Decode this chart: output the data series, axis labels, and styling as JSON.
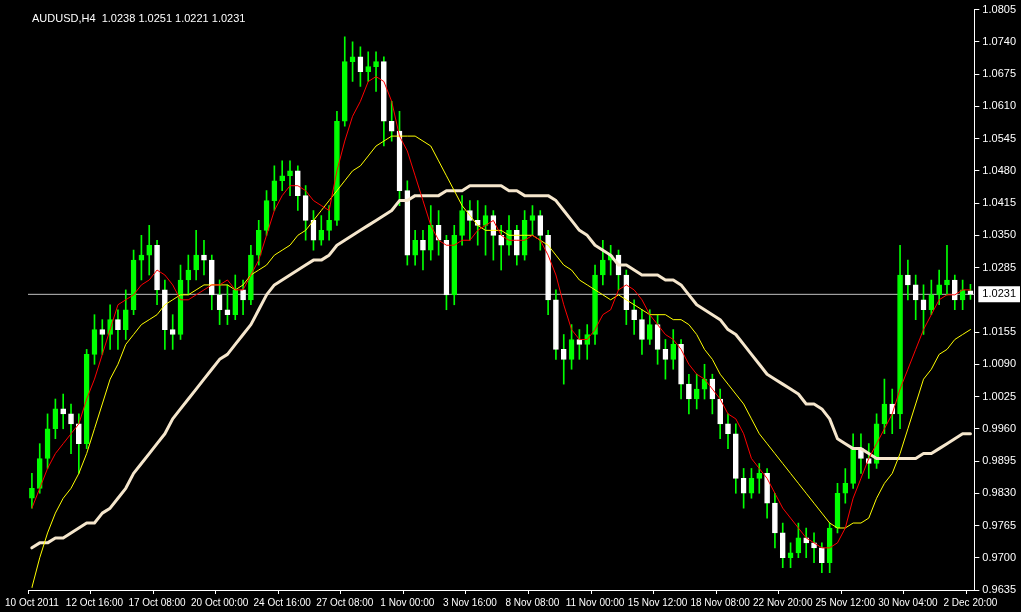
{
  "chart_data": {
    "type": "candlestick",
    "title": "AUDUSD,H4  1.0238 1.0251 1.0221 1.0231",
    "categories": [
      "10 Oct 2011",
      null,
      null,
      null,
      null,
      null,
      null,
      null,
      "12 Oct 16:00",
      null,
      null,
      null,
      null,
      null,
      null,
      null,
      "17 Oct 08:00",
      null,
      null,
      null,
      null,
      null,
      null,
      null,
      "20 Oct 00:00",
      null,
      null,
      null,
      null,
      null,
      null,
      null,
      "24 Oct 16:00",
      null,
      null,
      null,
      null,
      null,
      null,
      null,
      "27 Oct 08:00",
      null,
      null,
      null,
      null,
      null,
      null,
      null,
      "1 Nov 00:00",
      null,
      null,
      null,
      null,
      null,
      null,
      null,
      "3 Nov 16:00",
      null,
      null,
      null,
      null,
      null,
      null,
      null,
      "8 Nov 08:00",
      null,
      null,
      null,
      null,
      null,
      null,
      null,
      "11 Nov 00:00",
      null,
      null,
      null,
      null,
      null,
      null,
      null,
      "15 Nov 12:00",
      null,
      null,
      null,
      null,
      null,
      null,
      null,
      "18 Nov 08:00",
      null,
      null,
      null,
      null,
      null,
      null,
      null,
      "22 Nov 20:00",
      null,
      null,
      null,
      null,
      null,
      null,
      null,
      "25 Nov 12:00",
      null,
      null,
      null,
      null,
      null,
      null,
      null,
      "30 Nov 04:00",
      null,
      null,
      null,
      null,
      null,
      null,
      null,
      "2 Dec 20:00"
    ],
    "ohlc": [
      [
        0.982,
        0.987,
        0.98,
        0.984
      ],
      [
        0.984,
        0.993,
        0.983,
        0.99
      ],
      [
        0.99,
        0.999,
        0.988,
        0.996
      ],
      [
        0.996,
        1.002,
        0.994,
        1.0
      ],
      [
        1.0,
        1.003,
        0.996,
        0.999
      ],
      [
        0.999,
        1.001,
        0.991,
        0.997
      ],
      [
        0.997,
        0.999,
        0.987,
        0.993
      ],
      [
        0.993,
        1.012,
        0.992,
        1.011
      ],
      [
        1.011,
        1.019,
        1.009,
        1.016
      ],
      [
        1.016,
        1.018,
        1.011,
        1.015
      ],
      [
        1.015,
        1.021,
        1.012,
        1.018
      ],
      [
        1.018,
        1.02,
        1.012,
        1.016
      ],
      [
        1.016,
        1.024,
        1.014,
        1.02
      ],
      [
        1.02,
        1.032,
        1.019,
        1.03
      ],
      [
        1.03,
        1.035,
        1.026,
        1.031
      ],
      [
        1.031,
        1.037,
        1.027,
        1.033
      ],
      [
        1.033,
        1.034,
        1.021,
        1.024
      ],
      [
        1.024,
        1.026,
        1.012,
        1.016
      ],
      [
        1.016,
        1.019,
        1.012,
        1.015
      ],
      [
        1.015,
        1.029,
        1.014,
        1.026
      ],
      [
        1.026,
        1.031,
        1.023,
        1.028
      ],
      [
        1.028,
        1.036,
        1.026,
        1.031
      ],
      [
        1.031,
        1.034,
        1.027,
        1.03
      ],
      [
        1.03,
        1.031,
        1.02,
        1.023
      ],
      [
        1.023,
        1.026,
        1.017,
        1.02
      ],
      [
        1.02,
        1.025,
        1.017,
        1.019
      ],
      [
        1.019,
        1.027,
        1.018,
        1.024
      ],
      [
        1.024,
        1.026,
        1.019,
        1.022
      ],
      [
        1.022,
        1.033,
        1.021,
        1.031
      ],
      [
        1.031,
        1.038,
        1.029,
        1.036
      ],
      [
        1.036,
        1.044,
        1.035,
        1.042
      ],
      [
        1.042,
        1.049,
        1.04,
        1.046
      ],
      [
        1.046,
        1.05,
        1.044,
        1.047
      ],
      [
        1.047,
        1.05,
        1.043,
        1.048
      ],
      [
        1.048,
        1.049,
        1.04,
        1.043
      ],
      [
        1.043,
        1.045,
        1.034,
        1.038
      ],
      [
        1.038,
        1.04,
        1.032,
        1.034
      ],
      [
        1.034,
        1.039,
        1.033,
        1.036
      ],
      [
        1.036,
        1.041,
        1.034,
        1.038
      ],
      [
        1.038,
        1.06,
        1.037,
        1.058
      ],
      [
        1.058,
        1.075,
        1.057,
        1.07
      ],
      [
        1.07,
        1.074,
        1.066,
        1.071
      ],
      [
        1.071,
        1.073,
        1.065,
        1.068
      ],
      [
        1.068,
        1.072,
        1.066,
        1.069
      ],
      [
        1.069,
        1.072,
        1.064,
        1.07
      ],
      [
        1.07,
        1.071,
        1.053,
        1.058
      ],
      [
        1.058,
        1.062,
        1.054,
        1.056
      ],
      [
        1.056,
        1.06,
        1.041,
        1.044
      ],
      [
        1.044,
        1.046,
        1.029,
        1.031
      ],
      [
        1.031,
        1.036,
        1.029,
        1.034
      ],
      [
        1.034,
        1.036,
        1.028,
        1.032
      ],
      [
        1.032,
        1.041,
        1.03,
        1.037
      ],
      [
        1.037,
        1.04,
        1.031,
        1.034
      ],
      [
        1.034,
        1.035,
        1.02,
        1.023
      ],
      [
        1.023,
        1.037,
        1.021,
        1.035
      ],
      [
        1.035,
        1.043,
        1.033,
        1.04
      ],
      [
        1.04,
        1.042,
        1.034,
        1.038
      ],
      [
        1.038,
        1.042,
        1.033,
        1.037
      ],
      [
        1.037,
        1.041,
        1.031,
        1.039
      ],
      [
        1.039,
        1.04,
        1.03,
        1.035
      ],
      [
        1.035,
        1.037,
        1.028,
        1.033
      ],
      [
        1.033,
        1.039,
        1.031,
        1.036
      ],
      [
        1.036,
        1.037,
        1.029,
        1.031
      ],
      [
        1.031,
        1.04,
        1.03,
        1.038
      ],
      [
        1.038,
        1.041,
        1.035,
        1.039
      ],
      [
        1.039,
        1.04,
        1.032,
        1.035
      ],
      [
        1.035,
        1.036,
        1.019,
        1.022
      ],
      [
        1.022,
        1.024,
        1.01,
        1.012
      ],
      [
        1.012,
        1.015,
        1.005,
        1.01
      ],
      [
        1.01,
        1.017,
        1.008,
        1.014
      ],
      [
        1.014,
        1.016,
        1.01,
        1.013
      ],
      [
        1.013,
        1.017,
        1.01,
        1.015
      ],
      [
        1.015,
        1.029,
        1.013,
        1.027
      ],
      [
        1.027,
        1.034,
        1.025,
        1.03
      ],
      [
        1.03,
        1.033,
        1.027,
        1.031
      ],
      [
        1.031,
        1.032,
        1.024,
        1.027
      ],
      [
        1.027,
        1.028,
        1.017,
        1.02
      ],
      [
        1.02,
        1.022,
        1.015,
        1.018
      ],
      [
        1.018,
        1.02,
        1.011,
        1.014
      ],
      [
        1.014,
        1.02,
        1.013,
        1.017
      ],
      [
        1.017,
        1.019,
        1.009,
        1.012
      ],
      [
        1.012,
        1.014,
        1.006,
        1.01
      ],
      [
        1.01,
        1.016,
        1.008,
        1.013
      ],
      [
        1.013,
        1.014,
        1.002,
        1.005
      ],
      [
        1.005,
        1.007,
        0.999,
        1.002
      ],
      [
        1.002,
        1.007,
        1.0,
        1.004
      ],
      [
        1.004,
        1.009,
        1.002,
        1.006
      ],
      [
        1.006,
        1.007,
        0.999,
        1.002
      ],
      [
        1.002,
        1.004,
        0.994,
        0.997
      ],
      [
        0.997,
        0.999,
        0.992,
        0.995
      ],
      [
        0.995,
        0.997,
        0.983,
        0.986
      ],
      [
        0.986,
        0.988,
        0.98,
        0.983
      ],
      [
        0.983,
        0.988,
        0.982,
        0.986
      ],
      [
        0.986,
        0.989,
        0.983,
        0.987
      ],
      [
        0.987,
        0.988,
        0.978,
        0.981
      ],
      [
        0.981,
        0.983,
        0.972,
        0.975
      ],
      [
        0.975,
        0.977,
        0.968,
        0.97
      ],
      [
        0.97,
        0.973,
        0.968,
        0.971
      ],
      [
        0.971,
        0.977,
        0.97,
        0.974
      ],
      [
        0.974,
        0.976,
        0.97,
        0.973
      ],
      [
        0.973,
        0.975,
        0.969,
        0.972
      ],
      [
        0.972,
        0.973,
        0.967,
        0.969
      ],
      [
        0.969,
        0.977,
        0.967,
        0.976
      ],
      [
        0.976,
        0.985,
        0.975,
        0.983
      ],
      [
        0.983,
        0.988,
        0.981,
        0.985
      ],
      [
        0.985,
        0.995,
        0.984,
        0.992
      ],
      [
        0.992,
        0.995,
        0.987,
        0.99
      ],
      [
        0.99,
        0.993,
        0.986,
        0.989
      ],
      [
        0.989,
        0.999,
        0.988,
        0.997
      ],
      [
        0.997,
        1.006,
        0.995,
        1.001
      ],
      [
        1.001,
        1.004,
        0.995,
        0.999
      ],
      [
        0.999,
        1.033,
        0.996,
        1.027
      ],
      [
        1.027,
        1.03,
        1.022,
        1.025
      ],
      [
        1.025,
        1.027,
        1.018,
        1.022
      ],
      [
        1.022,
        1.025,
        1.015,
        1.02
      ],
      [
        1.02,
        1.026,
        1.019,
        1.023
      ],
      [
        1.023,
        1.028,
        1.021,
        1.025
      ],
      [
        1.025,
        1.033,
        1.023,
        1.026
      ],
      [
        1.026,
        1.027,
        1.02,
        1.022
      ],
      [
        1.022,
        1.026,
        1.02,
        1.024
      ],
      [
        1.0238,
        1.0251,
        1.0221,
        1.0231
      ]
    ],
    "color": "#00ff00",
    "colors": [
      "#00ff00",
      "#00ff00",
      "#00ff00",
      "#00ff00",
      "#ffffff",
      "#ffffff",
      "#ffffff",
      "#00ff00",
      "#00ff00",
      "#ffffff",
      "#00ff00",
      "#ffffff",
      "#00ff00",
      "#00ff00",
      "#00ff00",
      "#00ff00",
      "#ffffff",
      "#ffffff",
      "#ffffff",
      "#00ff00",
      "#00ff00",
      "#00ff00",
      "#ffffff",
      "#ffffff",
      "#ffffff",
      "#ffffff",
      "#00ff00",
      "#ffffff",
      "#00ff00",
      "#00ff00",
      "#00ff00",
      "#00ff00",
      "#00ff00",
      "#00ff00",
      "#ffffff",
      "#ffffff",
      "#ffffff",
      "#00ff00",
      "#00ff00",
      "#00ff00",
      "#00ff00",
      "#00ff00",
      "#ffffff",
      "#00ff00",
      "#00ff00",
      "#ffffff",
      "#ffffff",
      "#ffffff",
      "#ffffff",
      "#00ff00",
      "#ffffff",
      "#00ff00",
      "#ffffff",
      "#ffffff",
      "#00ff00",
      "#00ff00",
      "#ffffff",
      "#ffffff",
      "#00ff00",
      "#ffffff",
      "#ffffff",
      "#00ff00",
      "#ffffff",
      "#00ff00",
      "#00ff00",
      "#ffffff",
      "#ffffff",
      "#ffffff",
      "#ffffff",
      "#00ff00",
      "#ffffff",
      "#00ff00",
      "#00ff00",
      "#00ff00",
      "#00ff00",
      "#ffffff",
      "#ffffff",
      "#ffffff",
      "#ffffff",
      "#00ff00",
      "#ffffff",
      "#ffffff",
      "#00ff00",
      "#ffffff",
      "#ffffff",
      "#00ff00",
      "#00ff00",
      "#ffffff",
      "#ffffff",
      "#ffffff",
      "#ffffff",
      "#ffffff",
      "#00ff00",
      "#00ff00",
      "#ffffff",
      "#ffffff",
      "#ffffff",
      "#00ff00",
      "#00ff00",
      "#ffffff",
      "#ffffff",
      "#ffffff",
      "#00ff00",
      "#00ff00",
      "#00ff00",
      "#00ff00",
      "#ffffff",
      "#ffffff",
      "#00ff00",
      "#00ff00",
      "#ffffff",
      "#00ff00",
      "#ffffff",
      "#ffffff",
      "#ffffff",
      "#00ff00",
      "#00ff00",
      "#00ff00",
      "#ffffff",
      "#00ff00",
      "#ffffff"
    ],
    "series": [
      {
        "type": "line",
        "color": "#ff0000",
        "values": [
          0.98,
          0.984,
          0.988,
          0.991,
          0.993,
          0.995,
          0.997,
          1.002,
          1.006,
          1.011,
          1.016,
          1.021,
          1.022,
          1.023,
          1.025,
          1.026,
          1.028,
          1.027,
          1.025,
          1.022,
          1.022,
          1.023,
          1.024,
          1.025,
          1.025,
          1.026,
          1.024,
          1.024,
          1.027,
          1.03,
          1.035,
          1.04,
          1.043,
          1.045,
          1.045,
          1.044,
          1.042,
          1.041,
          1.04,
          1.048,
          1.054,
          1.059,
          1.062,
          1.066,
          1.067,
          1.066,
          1.062,
          1.055,
          1.052,
          1.047,
          1.042,
          1.037,
          1.034,
          1.033,
          1.033,
          1.034,
          1.034,
          1.036,
          1.037,
          1.038,
          1.035,
          1.034,
          1.034,
          1.034,
          1.035,
          1.034,
          1.031,
          1.027,
          1.021,
          1.016,
          1.014,
          1.014,
          1.016,
          1.019,
          1.02,
          1.024,
          1.025,
          1.024,
          1.022,
          1.019,
          1.017,
          1.015,
          1.014,
          1.012,
          1.009,
          1.007,
          1.006,
          1.004,
          1.002,
          0.999,
          0.998,
          0.995,
          0.99,
          0.988,
          0.986,
          0.983,
          0.98,
          0.978,
          0.976,
          0.974,
          0.973,
          0.972,
          0.972,
          0.973,
          0.976,
          0.982,
          0.986,
          0.99,
          0.993,
          0.996,
          0.999,
          1.004,
          1.008,
          1.012,
          1.016,
          1.019,
          1.022,
          1.023,
          1.023,
          1.024,
          1.024
        ]
      },
      {
        "type": "line",
        "color": "#ffff00",
        "values": [
          0.964,
          0.97,
          0.975,
          0.979,
          0.982,
          0.984,
          0.987,
          0.991,
          0.996,
          1.001,
          1.006,
          1.009,
          1.013,
          1.015,
          1.017,
          1.018,
          1.019,
          1.021,
          1.022,
          1.023,
          1.023,
          1.024,
          1.025,
          1.025,
          1.025,
          1.025,
          1.024,
          1.025,
          1.027,
          1.028,
          1.029,
          1.031,
          1.032,
          1.033,
          1.035,
          1.036,
          1.038,
          1.04,
          1.042,
          1.044,
          1.046,
          1.048,
          1.049,
          1.051,
          1.053,
          1.054,
          1.055,
          1.055,
          1.055,
          1.055,
          1.054,
          1.053,
          1.05,
          1.047,
          1.044,
          1.041,
          1.039,
          1.037,
          1.036,
          1.036,
          1.036,
          1.035,
          1.035,
          1.035,
          1.035,
          1.034,
          1.033,
          1.031,
          1.029,
          1.028,
          1.026,
          1.025,
          1.024,
          1.023,
          1.022,
          1.023,
          1.022,
          1.021,
          1.02,
          1.019,
          1.019,
          1.019,
          1.018,
          1.018,
          1.017,
          1.015,
          1.012,
          1.01,
          1.007,
          1.005,
          1.003,
          1.001,
          0.998,
          0.995,
          0.993,
          0.991,
          0.989,
          0.987,
          0.985,
          0.983,
          0.981,
          0.979,
          0.977,
          0.976,
          0.976,
          0.977,
          0.977,
          0.978,
          0.982,
          0.985,
          0.987,
          0.991,
          0.996,
          1.001,
          1.006,
          1.008,
          1.011,
          1.012,
          1.014,
          1.015,
          1.016
        ]
      },
      {
        "type": "line",
        "color": "#f5e6cc",
        "values": [
          0.972,
          0.973,
          0.973,
          0.974,
          0.974,
          0.975,
          0.976,
          0.977,
          0.977,
          0.979,
          0.98,
          0.982,
          0.984,
          0.987,
          0.989,
          0.991,
          0.993,
          0.995,
          0.998,
          1.0,
          1.002,
          1.004,
          1.006,
          1.008,
          1.01,
          1.011,
          1.013,
          1.015,
          1.017,
          1.02,
          1.023,
          1.025,
          1.026,
          1.027,
          1.028,
          1.029,
          1.03,
          1.03,
          1.031,
          1.033,
          1.034,
          1.035,
          1.036,
          1.037,
          1.038,
          1.039,
          1.04,
          1.042,
          1.042,
          1.043,
          1.043,
          1.043,
          1.043,
          1.044,
          1.044,
          1.044,
          1.045,
          1.045,
          1.045,
          1.045,
          1.045,
          1.044,
          1.044,
          1.043,
          1.043,
          1.043,
          1.043,
          1.042,
          1.04,
          1.038,
          1.036,
          1.035,
          1.033,
          1.032,
          1.031,
          1.029,
          1.029,
          1.028,
          1.027,
          1.027,
          1.027,
          1.026,
          1.026,
          1.025,
          1.023,
          1.021,
          1.02,
          1.019,
          1.018,
          1.016,
          1.015,
          1.013,
          1.011,
          1.009,
          1.007,
          1.006,
          1.005,
          1.004,
          1.003,
          1.001,
          1.001,
          1.0,
          0.998,
          0.994,
          0.993,
          0.992,
          0.992,
          0.991,
          0.99,
          0.99,
          0.99,
          0.99,
          0.99,
          0.99,
          0.991,
          0.991,
          0.992,
          0.993,
          0.994,
          0.995,
          0.995
        ]
      }
    ],
    "ylim": [
      0.9635,
      1.0805
    ],
    "yticks": [
      1.0805,
      {
        "value": 1.074,
        "label": "1.0740"
      },
      1.0675,
      {
        "value": 1.061,
        "label": "1.0610"
      },
      1.0545,
      {
        "value": 1.048,
        "label": "1.0480"
      },
      1.0415,
      {
        "value": 1.035,
        "label": "1.0350"
      },
      1.0285,
      1.0155,
      {
        "value": 1.009,
        "label": "1.0090"
      },
      1.0025,
      {
        "value": 0.996,
        "label": "0.9960"
      },
      0.9895,
      {
        "value": 0.983,
        "label": "0.9830"
      },
      0.9765,
      {
        "value": 0.97,
        "label": "0.9700"
      },
      0.9635
    ],
    "ref_lines": [
      {
        "axis": "y",
        "value": 1.0231,
        "label": "1.0231",
        "color": "#c0c0c0"
      }
    ]
  }
}
